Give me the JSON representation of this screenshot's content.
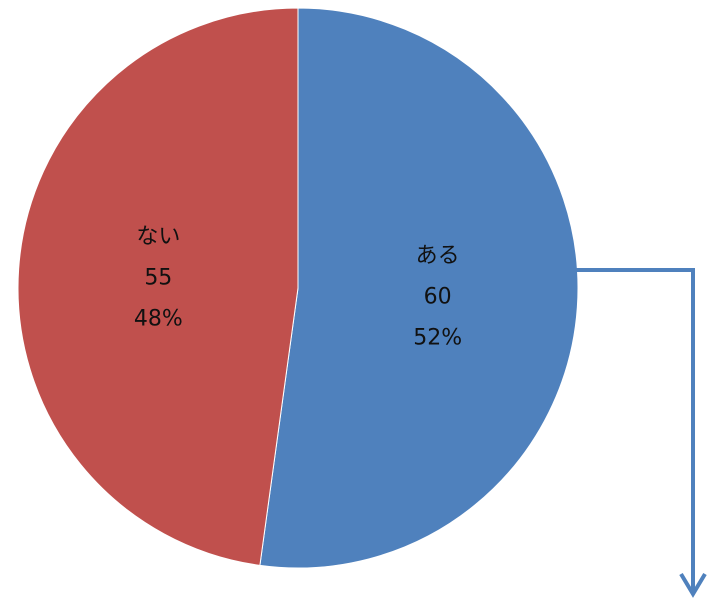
{
  "chart_data": {
    "type": "pie",
    "title": "",
    "slices": [
      {
        "label": "ある",
        "value": 60,
        "percent_label": "52%",
        "color": "#4F81BD"
      },
      {
        "label": "ない",
        "value": 55,
        "percent_label": "48%",
        "color": "#C0504D"
      }
    ],
    "start_angle": "top",
    "direction": "clockwise",
    "callout_arrow_color": "#4F81BD"
  }
}
